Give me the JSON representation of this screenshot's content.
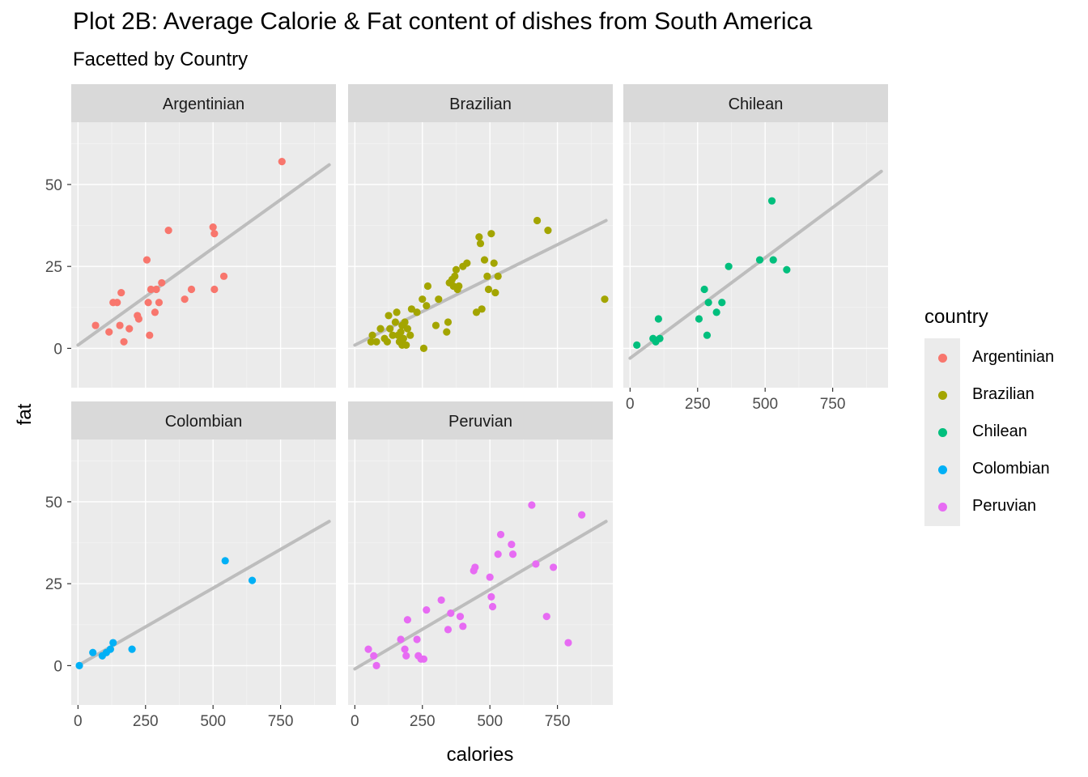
{
  "title": "Plot 2B: Average Calorie & Fat content of dishes from South America",
  "subtitle": "Facetted by Country",
  "chart_data": {
    "type": "scatter",
    "title": "Plot 2B: Average Calorie & Fat content of dishes from South America",
    "subtitle": "Facetted by Country",
    "xlabel": "calories",
    "ylabel": "fat",
    "xlim": [
      -25,
      955
    ],
    "ylim": [
      -12,
      69
    ],
    "x_ticks": [
      0,
      250,
      500,
      750
    ],
    "y_ticks": [
      0,
      25,
      50
    ],
    "grid": true,
    "legend": {
      "title": "country",
      "position": "right"
    },
    "trendline": {
      "type": "linear",
      "color": "#bdbdbd"
    },
    "panels": [
      {
        "name": "Argentinian",
        "color": "#F8766D",
        "trend": [
          [
            0,
            1
          ],
          [
            930,
            56
          ]
        ],
        "points": [
          [
            65,
            7
          ],
          [
            115,
            5
          ],
          [
            130,
            14
          ],
          [
            145,
            14
          ],
          [
            155,
            7
          ],
          [
            160,
            17
          ],
          [
            170,
            2
          ],
          [
            190,
            6
          ],
          [
            220,
            10
          ],
          [
            225,
            9
          ],
          [
            255,
            27
          ],
          [
            260,
            14
          ],
          [
            265,
            4
          ],
          [
            270,
            18
          ],
          [
            290,
            18
          ],
          [
            285,
            11
          ],
          [
            300,
            14
          ],
          [
            310,
            20
          ],
          [
            335,
            36
          ],
          [
            395,
            15
          ],
          [
            420,
            18
          ],
          [
            500,
            37
          ],
          [
            505,
            35
          ],
          [
            505,
            18
          ],
          [
            540,
            22
          ],
          [
            755,
            57
          ]
        ]
      },
      {
        "name": "Brazilian",
        "color": "#A3A500",
        "trend": [
          [
            0,
            1
          ],
          [
            930,
            39
          ]
        ],
        "points": [
          [
            60,
            2
          ],
          [
            65,
            4
          ],
          [
            80,
            2
          ],
          [
            95,
            6
          ],
          [
            110,
            3
          ],
          [
            120,
            2
          ],
          [
            125,
            10
          ],
          [
            130,
            6
          ],
          [
            140,
            4
          ],
          [
            150,
            8
          ],
          [
            155,
            11
          ],
          [
            160,
            4
          ],
          [
            165,
            2
          ],
          [
            170,
            5
          ],
          [
            175,
            1
          ],
          [
            175,
            7
          ],
          [
            180,
            3
          ],
          [
            185,
            8
          ],
          [
            190,
            1
          ],
          [
            195,
            6
          ],
          [
            205,
            4
          ],
          [
            210,
            12
          ],
          [
            230,
            11
          ],
          [
            250,
            15
          ],
          [
            255,
            0
          ],
          [
            265,
            13
          ],
          [
            270,
            19
          ],
          [
            300,
            7
          ],
          [
            310,
            15
          ],
          [
            340,
            5
          ],
          [
            345,
            8
          ],
          [
            350,
            20
          ],
          [
            360,
            21
          ],
          [
            365,
            19
          ],
          [
            370,
            22
          ],
          [
            375,
            24
          ],
          [
            380,
            18
          ],
          [
            385,
            19
          ],
          [
            400,
            25
          ],
          [
            415,
            26
          ],
          [
            450,
            11
          ],
          [
            460,
            34
          ],
          [
            465,
            32
          ],
          [
            470,
            12
          ],
          [
            480,
            27
          ],
          [
            490,
            22
          ],
          [
            495,
            18
          ],
          [
            505,
            35
          ],
          [
            515,
            26
          ],
          [
            520,
            17
          ],
          [
            530,
            22
          ],
          [
            675,
            39
          ],
          [
            715,
            36
          ],
          [
            925,
            15
          ]
        ]
      },
      {
        "name": "Chilean",
        "color": "#00BF7D",
        "trend": [
          [
            0,
            -3
          ],
          [
            930,
            54
          ]
        ],
        "points": [
          [
            25,
            1
          ],
          [
            85,
            3
          ],
          [
            95,
            2
          ],
          [
            105,
            9
          ],
          [
            110,
            3
          ],
          [
            255,
            9
          ],
          [
            275,
            18
          ],
          [
            285,
            4
          ],
          [
            290,
            14
          ],
          [
            320,
            11
          ],
          [
            340,
            14
          ],
          [
            365,
            25
          ],
          [
            480,
            27
          ],
          [
            525,
            45
          ],
          [
            530,
            27
          ],
          [
            580,
            24
          ]
        ]
      },
      {
        "name": "Colombian",
        "color": "#00B0F6",
        "trend": [
          [
            0,
            0
          ],
          [
            930,
            44
          ]
        ],
        "points": [
          [
            5,
            0
          ],
          [
            55,
            4
          ],
          [
            90,
            3
          ],
          [
            105,
            4
          ],
          [
            120,
            5
          ],
          [
            130,
            7
          ],
          [
            200,
            5
          ],
          [
            545,
            32
          ],
          [
            645,
            26
          ]
        ]
      },
      {
        "name": "Peruvian",
        "color": "#E76BF3",
        "trend": [
          [
            0,
            -1
          ],
          [
            930,
            44
          ]
        ],
        "points": [
          [
            50,
            5
          ],
          [
            70,
            3
          ],
          [
            80,
            0
          ],
          [
            170,
            8
          ],
          [
            185,
            5
          ],
          [
            190,
            3
          ],
          [
            195,
            14
          ],
          [
            230,
            8
          ],
          [
            235,
            3
          ],
          [
            245,
            2
          ],
          [
            255,
            2
          ],
          [
            265,
            17
          ],
          [
            320,
            20
          ],
          [
            345,
            11
          ],
          [
            355,
            16
          ],
          [
            390,
            15
          ],
          [
            400,
            12
          ],
          [
            440,
            29
          ],
          [
            445,
            30
          ],
          [
            500,
            27
          ],
          [
            505,
            21
          ],
          [
            510,
            18
          ],
          [
            530,
            34
          ],
          [
            540,
            40
          ],
          [
            580,
            37
          ],
          [
            585,
            34
          ],
          [
            655,
            49
          ],
          [
            670,
            31
          ],
          [
            710,
            15
          ],
          [
            735,
            30
          ],
          [
            790,
            7
          ],
          [
            840,
            46
          ]
        ]
      }
    ]
  }
}
